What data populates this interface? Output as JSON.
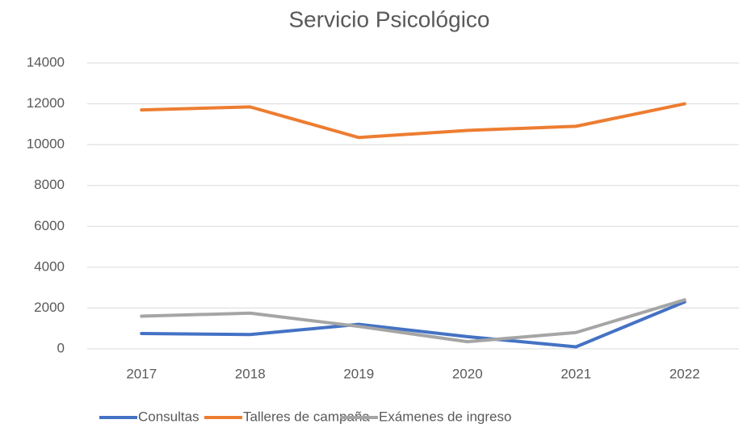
{
  "chart_data": {
    "type": "line",
    "title": "Servicio Psicológico",
    "categories": [
      "2017",
      "2018",
      "2019",
      "2020",
      "2021",
      "2022"
    ],
    "series": [
      {
        "name": "Consultas",
        "color": "#4472c4",
        "values": [
          750,
          700,
          1200,
          600,
          100,
          2300
        ]
      },
      {
        "name": "Talleres de campaña",
        "color": "#ed7d31",
        "values": [
          11700,
          11850,
          10350,
          10700,
          10900,
          12000
        ]
      },
      {
        "name": "Exámenes de ingreso",
        "color": "#a5a5a5",
        "values": [
          1600,
          1750,
          1100,
          350,
          800,
          2400
        ]
      }
    ],
    "ylim": [
      0,
      14000
    ],
    "yticks": [
      0,
      2000,
      4000,
      6000,
      8000,
      10000,
      12000,
      14000
    ],
    "grid": true,
    "legend": "bottom"
  }
}
